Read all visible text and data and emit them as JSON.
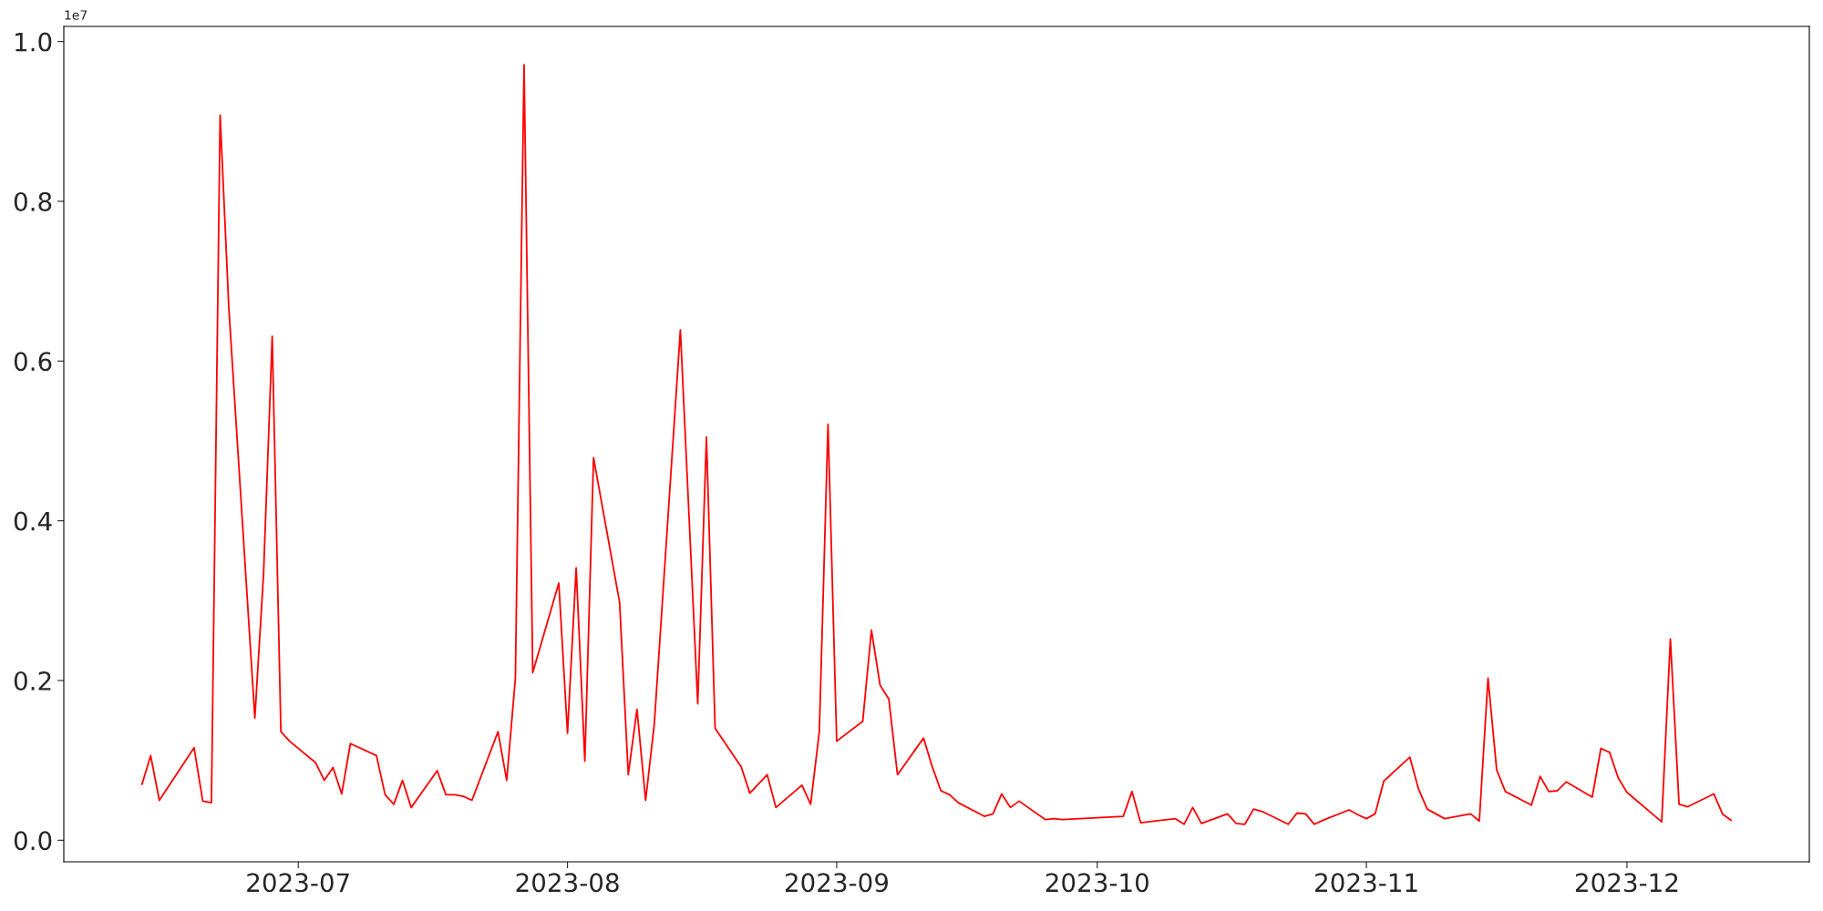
{
  "chart_data": {
    "type": "line",
    "x": [
      "2023-06-13",
      "2023-06-14",
      "2023-06-15",
      "2023-06-19",
      "2023-06-20",
      "2023-06-21",
      "2023-06-22",
      "2023-06-23",
      "2023-06-26",
      "2023-06-27",
      "2023-06-28",
      "2023-06-29",
      "2023-06-30",
      "2023-07-03",
      "2023-07-04",
      "2023-07-05",
      "2023-07-06",
      "2023-07-07",
      "2023-07-10",
      "2023-07-11",
      "2023-07-12",
      "2023-07-13",
      "2023-07-14",
      "2023-07-17",
      "2023-07-18",
      "2023-07-19",
      "2023-07-20",
      "2023-07-21",
      "2023-07-24",
      "2023-07-25",
      "2023-07-26",
      "2023-07-27",
      "2023-07-28",
      "2023-07-31",
      "2023-08-01",
      "2023-08-02",
      "2023-08-03",
      "2023-08-04",
      "2023-08-07",
      "2023-08-08",
      "2023-08-09",
      "2023-08-10",
      "2023-08-11",
      "2023-08-14",
      "2023-08-16",
      "2023-08-17",
      "2023-08-18",
      "2023-08-21",
      "2023-08-22",
      "2023-08-24",
      "2023-08-25",
      "2023-08-28",
      "2023-08-29",
      "2023-08-30",
      "2023-08-31",
      "2023-09-01",
      "2023-09-04",
      "2023-09-05",
      "2023-09-06",
      "2023-09-07",
      "2023-09-08",
      "2023-09-11",
      "2023-09-12",
      "2023-09-13",
      "2023-09-14",
      "2023-09-15",
      "2023-09-18",
      "2023-09-19",
      "2023-09-20",
      "2023-09-21",
      "2023-09-22",
      "2023-09-25",
      "2023-09-26",
      "2023-09-27",
      "2023-10-04",
      "2023-10-05",
      "2023-10-06",
      "2023-10-10",
      "2023-10-11",
      "2023-10-12",
      "2023-10-13",
      "2023-10-16",
      "2023-10-17",
      "2023-10-18",
      "2023-10-19",
      "2023-10-20",
      "2023-10-23",
      "2023-10-24",
      "2023-10-25",
      "2023-10-26",
      "2023-10-27",
      "2023-10-30",
      "2023-10-31",
      "2023-11-01",
      "2023-11-02",
      "2023-11-03",
      "2023-11-06",
      "2023-11-07",
      "2023-11-08",
      "2023-11-10",
      "2023-11-13",
      "2023-11-14",
      "2023-11-15",
      "2023-11-16",
      "2023-11-17",
      "2023-11-20",
      "2023-11-21",
      "2023-11-22",
      "2023-11-23",
      "2023-11-24",
      "2023-11-27",
      "2023-11-28",
      "2023-11-29",
      "2023-11-30",
      "2023-12-01",
      "2023-12-05",
      "2023-12-06",
      "2023-12-07",
      "2023-12-08",
      "2023-12-11",
      "2023-12-12",
      "2023-12-13"
    ],
    "series": [
      {
        "color": "#ff0000",
        "values": [
          0.07,
          0.106,
          0.05,
          0.116,
          0.049,
          0.047,
          0.908,
          0.667,
          0.153,
          0.333,
          0.631,
          0.136,
          0.124,
          0.097,
          0.075,
          0.091,
          0.058,
          0.121,
          0.106,
          0.057,
          0.045,
          0.075,
          0.041,
          0.087,
          0.057,
          0.057,
          0.055,
          0.05,
          0.136,
          0.075,
          0.203,
          0.971,
          0.21,
          0.322,
          0.134,
          0.341,
          0.099,
          0.479,
          0.298,
          0.082,
          0.164,
          0.05,
          0.146,
          0.639,
          0.171,
          0.505,
          0.14,
          0.092,
          0.059,
          0.082,
          0.041,
          0.069,
          0.045,
          0.136,
          0.521,
          0.124,
          0.149,
          0.263,
          0.194,
          0.177,
          0.082,
          0.128,
          0.092,
          0.062,
          0.057,
          0.047,
          0.03,
          0.033,
          0.058,
          0.041,
          0.049,
          0.026,
          0.027,
          0.026,
          0.03,
          0.061,
          0.022,
          0.027,
          0.02,
          0.041,
          0.021,
          0.033,
          0.021,
          0.02,
          0.039,
          0.036,
          0.02,
          0.034,
          0.033,
          0.02,
          0.025,
          0.038,
          0.032,
          0.027,
          0.033,
          0.074,
          0.104,
          0.064,
          0.039,
          0.027,
          0.033,
          0.024,
          0.203,
          0.088,
          0.061,
          0.044,
          0.08,
          0.061,
          0.062,
          0.073,
          0.054,
          0.115,
          0.11,
          0.078,
          0.06,
          0.023,
          0.252,
          0.045,
          0.042,
          0.058,
          0.033,
          0.025
        ]
      }
    ],
    "xlim": [
      "2023-06-04",
      "2023-12-22"
    ],
    "xticks": [
      "2023-07",
      "2023-08",
      "2023-09",
      "2023-10",
      "2023-11",
      "2023-12"
    ],
    "ylim": [
      -0.027,
      1.019
    ],
    "yticks": [
      {
        "value": 0,
        "label": "0.0"
      },
      0.2,
      0.4,
      0.6,
      0.8,
      {
        "value": 1,
        "label": "1.0"
      }
    ],
    "annotations": [
      "1e7"
    ],
    "grid": false,
    "marker": "none",
    "line_style": "solid"
  }
}
